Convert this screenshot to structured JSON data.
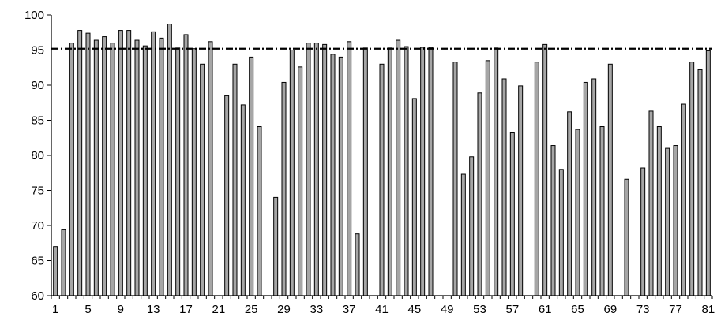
{
  "chart_data": {
    "type": "bar",
    "title": "",
    "xlabel": "",
    "ylabel": "",
    "ylim": [
      60,
      100
    ],
    "yticks": [
      60,
      65,
      70,
      75,
      80,
      85,
      90,
      95,
      100
    ],
    "x_tick_labels": [
      1,
      5,
      9,
      13,
      17,
      21,
      25,
      29,
      33,
      37,
      41,
      45,
      49,
      53,
      57,
      61,
      65,
      69,
      73,
      77,
      81
    ],
    "grid": false,
    "legend": "none",
    "reference_line": {
      "value": 95.2,
      "style": "dash-dot",
      "color": "#000000"
    },
    "bar_color": "#a6a6a6",
    "bar_edge_color": "#000000",
    "categories": [
      1,
      2,
      3,
      4,
      5,
      6,
      7,
      8,
      9,
      10,
      11,
      12,
      13,
      14,
      15,
      16,
      17,
      18,
      19,
      20,
      21,
      22,
      23,
      24,
      25,
      26,
      27,
      28,
      29,
      30,
      31,
      32,
      33,
      34,
      35,
      36,
      37,
      38,
      39,
      40,
      41,
      42,
      43,
      44,
      45,
      46,
      47,
      48,
      49,
      50,
      51,
      52,
      53,
      54,
      55,
      56,
      57,
      58,
      59,
      60,
      61,
      62,
      63,
      64,
      65,
      66,
      67,
      68,
      69,
      70,
      71,
      72,
      73,
      74,
      75,
      76,
      77,
      78,
      79,
      80,
      81
    ],
    "values": [
      67.0,
      69.4,
      96.0,
      97.8,
      97.4,
      96.4,
      96.9,
      96.0,
      97.8,
      97.8,
      96.4,
      95.6,
      97.6,
      96.7,
      98.7,
      95.3,
      97.2,
      95.2,
      93.0,
      96.2,
      null,
      88.5,
      93.0,
      87.2,
      94.0,
      84.1,
      null,
      74.0,
      90.4,
      95.0,
      92.6,
      96.0,
      96.0,
      95.8,
      94.4,
      94.0,
      96.2,
      68.8,
      95.3,
      null,
      93.0,
      95.3,
      96.4,
      95.5,
      88.1,
      95.4,
      95.4,
      null,
      null,
      93.3,
      77.3,
      79.8,
      88.9,
      93.5,
      95.3,
      90.9,
      83.2,
      89.9,
      null,
      93.3,
      95.8,
      81.4,
      78.0,
      86.2,
      83.7,
      90.4,
      90.9,
      84.1,
      93.0,
      null,
      76.6,
      null,
      78.2,
      86.3,
      84.1,
      81.0,
      81.4,
      87.3,
      93.3,
      92.2,
      94.9
    ]
  }
}
